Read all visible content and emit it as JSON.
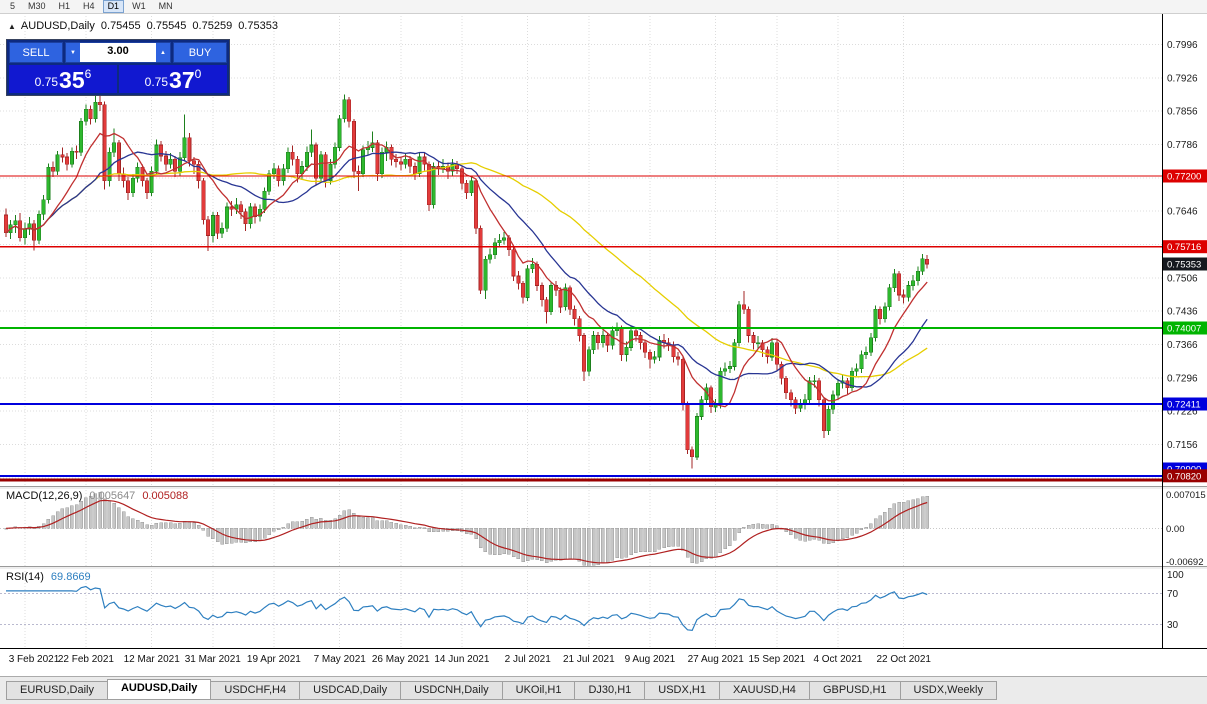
{
  "toolbar": {
    "timeframes": [
      "5",
      "M30",
      "H1",
      "H4",
      "D1",
      "W1",
      "MN"
    ],
    "active": "D1"
  },
  "chart_header": {
    "collapse_icon": "▲",
    "symbol": "AUDUSD,Daily",
    "open": "0.75455",
    "high": "0.75545",
    "low": "0.75259",
    "close": "0.75353"
  },
  "trade_panel": {
    "sell_label": "SELL",
    "buy_label": "BUY",
    "lot_value": "3.00",
    "spinner_down": "▼",
    "spinner_up": "▲",
    "sell_quote": {
      "prefix": "0.75",
      "big": "35",
      "sup": "6"
    },
    "buy_quote": {
      "prefix": "0.75",
      "big": "37",
      "sup": "0"
    }
  },
  "indicator_labels": {
    "macd_name": "MACD(12,26,9)",
    "macd_main": "0.005647",
    "macd_signal": "0.005088",
    "rsi_name": "RSI(14)",
    "rsi_value": "69.8669"
  },
  "price_axis": {
    "ticks": [
      0.7996,
      0.7926,
      0.7856,
      0.7786,
      0.7716,
      0.7646,
      0.7576,
      0.7506,
      0.7436,
      0.7366,
      0.7296,
      0.7226,
      0.7156,
      0.7086
    ],
    "current": {
      "value": 0.75353,
      "label": "0.75353",
      "color": "#15181e"
    }
  },
  "macd_axis": {
    "top": "0.007015",
    "zero": "0.00",
    "bottom": "-0.00692"
  },
  "rsi_axis": {
    "ticks": [
      100,
      70,
      30
    ]
  },
  "date_axis": {
    "ticks": [
      {
        "i": 4,
        "label": "3 Feb 2021"
      },
      {
        "i": 17,
        "label": "22 Feb 2021"
      },
      {
        "i": 31,
        "label": "12 Mar 2021"
      },
      {
        "i": 44,
        "label": "31 Mar 2021"
      },
      {
        "i": 57,
        "label": "19 Apr 2021"
      },
      {
        "i": 71,
        "label": "7 May 2021"
      },
      {
        "i": 84,
        "label": "26 May 2021"
      },
      {
        "i": 97,
        "label": "14 Jun 2021"
      },
      {
        "i": 111,
        "label": "2 Jul 2021"
      },
      {
        "i": 124,
        "label": "21 Jul 2021"
      },
      {
        "i": 137,
        "label": "9 Aug 2021"
      },
      {
        "i": 151,
        "label": "27 Aug 2021"
      },
      {
        "i": 164,
        "label": "15 Sep 2021"
      },
      {
        "i": 177,
        "label": "4 Oct 2021"
      },
      {
        "i": 191,
        "label": "22 Oct 2021"
      }
    ]
  },
  "hlines": [
    {
      "price": 0.772,
      "label": "0.77200",
      "color": "#dd0000",
      "width": 1.4,
      "badge": true
    },
    {
      "price": 0.75716,
      "label": "0.75716",
      "color": "#dd0000",
      "width": 1.4,
      "badge": true
    },
    {
      "price": 0.74007,
      "label": "0.74007",
      "color": "#00b400",
      "width": 1.6,
      "badge": true
    },
    {
      "price": 0.72411,
      "label": "0.72411",
      "color": "#0000dd",
      "width": 1.6,
      "badge": true
    },
    {
      "price": 0.709,
      "label": "0.70900",
      "color": "#0000dd",
      "width": 1.6,
      "badge": true
    },
    {
      "price": 0.7082,
      "label": "0.70820",
      "color": "#990000",
      "width": 3,
      "badge": true
    }
  ],
  "chart_data": {
    "type": "candlestick",
    "symbol": "AUDUSD",
    "timeframe": "Daily",
    "view": {
      "price_min": 0.7069,
      "price_max": 0.8056
    },
    "overlays": [
      {
        "type": "sma",
        "period": 45,
        "color": "#e6ce00"
      },
      {
        "type": "sma",
        "period": 20,
        "color": "#283593"
      },
      {
        "type": "sma",
        "period": 10,
        "color": "#c03030"
      }
    ],
    "macd": {
      "fast": 12,
      "slow": 26,
      "signal": 9,
      "range": [
        -0.00692,
        0.007015
      ]
    },
    "rsi": {
      "period": 14,
      "levels": [
        30,
        70
      ],
      "range": [
        0,
        100
      ]
    },
    "candles": [
      [
        0.7638,
        0.7652,
        0.7592,
        0.7601
      ],
      [
        0.7601,
        0.7628,
        0.7588,
        0.7618
      ],
      [
        0.7618,
        0.7638,
        0.76,
        0.7626
      ],
      [
        0.7626,
        0.7642,
        0.7582,
        0.759
      ],
      [
        0.759,
        0.7622,
        0.7576,
        0.7608
      ],
      [
        0.7608,
        0.7634,
        0.7596,
        0.762
      ],
      [
        0.762,
        0.7628,
        0.7564,
        0.7585
      ],
      [
        0.7585,
        0.7648,
        0.7577,
        0.764
      ],
      [
        0.764,
        0.768,
        0.7628,
        0.767
      ],
      [
        0.767,
        0.7746,
        0.7662,
        0.7738
      ],
      [
        0.7738,
        0.775,
        0.7718,
        0.773
      ],
      [
        0.773,
        0.7773,
        0.7722,
        0.7765
      ],
      [
        0.7765,
        0.778,
        0.7748,
        0.776
      ],
      [
        0.776,
        0.7768,
        0.7732,
        0.7745
      ],
      [
        0.7745,
        0.778,
        0.7738,
        0.7772
      ],
      [
        0.7772,
        0.7784,
        0.7756,
        0.777
      ],
      [
        0.777,
        0.7842,
        0.7762,
        0.7835
      ],
      [
        0.7835,
        0.787,
        0.7826,
        0.786
      ],
      [
        0.786,
        0.7868,
        0.7828,
        0.784
      ],
      [
        0.784,
        0.789,
        0.7832,
        0.7875
      ],
      [
        0.7875,
        0.7891,
        0.7856,
        0.787
      ],
      [
        0.787,
        0.7876,
        0.7692,
        0.771
      ],
      [
        0.771,
        0.778,
        0.7698,
        0.777
      ],
      [
        0.777,
        0.782,
        0.776,
        0.779
      ],
      [
        0.779,
        0.7796,
        0.771,
        0.7725
      ],
      [
        0.7725,
        0.7738,
        0.7696,
        0.771
      ],
      [
        0.771,
        0.7718,
        0.767,
        0.7685
      ],
      [
        0.7685,
        0.7724,
        0.7676,
        0.7715
      ],
      [
        0.7715,
        0.7748,
        0.7706,
        0.7738
      ],
      [
        0.7738,
        0.7744,
        0.7698,
        0.771
      ],
      [
        0.771,
        0.7716,
        0.7672,
        0.7685
      ],
      [
        0.7685,
        0.774,
        0.7678,
        0.773
      ],
      [
        0.773,
        0.7797,
        0.7722,
        0.7785
      ],
      [
        0.7785,
        0.7794,
        0.775,
        0.7762
      ],
      [
        0.7762,
        0.7772,
        0.773,
        0.7745
      ],
      [
        0.7745,
        0.7768,
        0.7736,
        0.7755
      ],
      [
        0.7755,
        0.7762,
        0.7718,
        0.773
      ],
      [
        0.773,
        0.777,
        0.772,
        0.7758
      ],
      [
        0.7758,
        0.7849,
        0.775,
        0.78
      ],
      [
        0.78,
        0.781,
        0.774,
        0.7752
      ],
      [
        0.7752,
        0.776,
        0.7724,
        0.7745
      ],
      [
        0.7745,
        0.7752,
        0.7694,
        0.771
      ],
      [
        0.771,
        0.7716,
        0.7618,
        0.7628
      ],
      [
        0.7628,
        0.7636,
        0.7562,
        0.7595
      ],
      [
        0.7595,
        0.7644,
        0.758,
        0.7637
      ],
      [
        0.7637,
        0.7644,
        0.7588,
        0.76
      ],
      [
        0.76,
        0.7622,
        0.759,
        0.761
      ],
      [
        0.761,
        0.7664,
        0.7602,
        0.7655
      ],
      [
        0.7655,
        0.7668,
        0.7636,
        0.765
      ],
      [
        0.765,
        0.7674,
        0.764,
        0.766
      ],
      [
        0.766,
        0.7668,
        0.763,
        0.7645
      ],
      [
        0.7645,
        0.7652,
        0.7605,
        0.762
      ],
      [
        0.762,
        0.7663,
        0.761,
        0.7655
      ],
      [
        0.7655,
        0.7662,
        0.762,
        0.7635
      ],
      [
        0.7635,
        0.766,
        0.7624,
        0.765
      ],
      [
        0.765,
        0.7696,
        0.7642,
        0.7688
      ],
      [
        0.7688,
        0.7733,
        0.768,
        0.7725
      ],
      [
        0.7725,
        0.7747,
        0.7714,
        0.7735
      ],
      [
        0.7735,
        0.7742,
        0.7698,
        0.771
      ],
      [
        0.771,
        0.7745,
        0.77,
        0.7735
      ],
      [
        0.7735,
        0.778,
        0.7726,
        0.777
      ],
      [
        0.777,
        0.7784,
        0.7742,
        0.7755
      ],
      [
        0.7755,
        0.7762,
        0.7706,
        0.7725
      ],
      [
        0.7725,
        0.7752,
        0.7712,
        0.774
      ],
      [
        0.774,
        0.7782,
        0.773,
        0.777
      ],
      [
        0.777,
        0.7818,
        0.776,
        0.7785
      ],
      [
        0.7785,
        0.779,
        0.77,
        0.7715
      ],
      [
        0.7715,
        0.7772,
        0.7706,
        0.7765
      ],
      [
        0.7765,
        0.777,
        0.7696,
        0.771
      ],
      [
        0.771,
        0.7756,
        0.7702,
        0.7745
      ],
      [
        0.7745,
        0.779,
        0.7736,
        0.778
      ],
      [
        0.778,
        0.7848,
        0.7772,
        0.784
      ],
      [
        0.784,
        0.7891,
        0.7832,
        0.788
      ],
      [
        0.788,
        0.7886,
        0.7822,
        0.7835
      ],
      [
        0.7835,
        0.784,
        0.7716,
        0.773
      ],
      [
        0.773,
        0.7742,
        0.7688,
        0.7725
      ],
      [
        0.7725,
        0.7784,
        0.7718,
        0.7775
      ],
      [
        0.7775,
        0.7794,
        0.7764,
        0.778
      ],
      [
        0.778,
        0.7813,
        0.777,
        0.779
      ],
      [
        0.779,
        0.7796,
        0.771,
        0.7725
      ],
      [
        0.7725,
        0.778,
        0.7716,
        0.777
      ],
      [
        0.777,
        0.7792,
        0.7752,
        0.778
      ],
      [
        0.778,
        0.7786,
        0.7742,
        0.7755
      ],
      [
        0.7755,
        0.7766,
        0.7738,
        0.775
      ],
      [
        0.775,
        0.776,
        0.7732,
        0.7745
      ],
      [
        0.7745,
        0.7768,
        0.7736,
        0.7755
      ],
      [
        0.7755,
        0.7762,
        0.7726,
        0.774
      ],
      [
        0.774,
        0.7748,
        0.7712,
        0.7725
      ],
      [
        0.7725,
        0.777,
        0.7718,
        0.776
      ],
      [
        0.776,
        0.7768,
        0.7732,
        0.7745
      ],
      [
        0.7745,
        0.775,
        0.7646,
        0.766
      ],
      [
        0.766,
        0.7748,
        0.7652,
        0.774
      ],
      [
        0.774,
        0.7752,
        0.7722,
        0.7735
      ],
      [
        0.7735,
        0.7756,
        0.7726,
        0.774
      ],
      [
        0.774,
        0.7748,
        0.7714,
        0.773
      ],
      [
        0.773,
        0.7756,
        0.772,
        0.7745
      ],
      [
        0.7745,
        0.7752,
        0.7724,
        0.7735
      ],
      [
        0.7735,
        0.774,
        0.7692,
        0.7705
      ],
      [
        0.7705,
        0.7712,
        0.7672,
        0.7685
      ],
      [
        0.7685,
        0.772,
        0.7678,
        0.771
      ],
      [
        0.771,
        0.7714,
        0.7598,
        0.761
      ],
      [
        0.761,
        0.7616,
        0.7472,
        0.748
      ],
      [
        0.748,
        0.7552,
        0.7462,
        0.7545
      ],
      [
        0.7545,
        0.7568,
        0.7536,
        0.7555
      ],
      [
        0.7555,
        0.759,
        0.7546,
        0.758
      ],
      [
        0.758,
        0.7598,
        0.757,
        0.7585
      ],
      [
        0.7585,
        0.7602,
        0.7576,
        0.759
      ],
      [
        0.759,
        0.7596,
        0.7552,
        0.7565
      ],
      [
        0.7565,
        0.757,
        0.75,
        0.751
      ],
      [
        0.751,
        0.752,
        0.7482,
        0.7495
      ],
      [
        0.7495,
        0.75,
        0.7452,
        0.7465
      ],
      [
        0.7465,
        0.7533,
        0.7458,
        0.7525
      ],
      [
        0.7525,
        0.7548,
        0.7516,
        0.7535
      ],
      [
        0.7535,
        0.754,
        0.7478,
        0.749
      ],
      [
        0.749,
        0.7496,
        0.7446,
        0.746
      ],
      [
        0.746,
        0.7466,
        0.741,
        0.7435
      ],
      [
        0.7435,
        0.7497,
        0.7428,
        0.749
      ],
      [
        0.749,
        0.75,
        0.7468,
        0.748
      ],
      [
        0.748,
        0.7486,
        0.7432,
        0.7445
      ],
      [
        0.7445,
        0.7494,
        0.7438,
        0.7485
      ],
      [
        0.7485,
        0.749,
        0.7428,
        0.744
      ],
      [
        0.744,
        0.7448,
        0.7406,
        0.742
      ],
      [
        0.742,
        0.7426,
        0.7372,
        0.7385
      ],
      [
        0.7385,
        0.739,
        0.729,
        0.731
      ],
      [
        0.731,
        0.7362,
        0.73,
        0.7355
      ],
      [
        0.7355,
        0.7394,
        0.7346,
        0.7385
      ],
      [
        0.7385,
        0.7392,
        0.7356,
        0.737
      ],
      [
        0.737,
        0.7396,
        0.736,
        0.7385
      ],
      [
        0.7385,
        0.739,
        0.735,
        0.7365
      ],
      [
        0.7365,
        0.7404,
        0.7356,
        0.7395
      ],
      [
        0.7395,
        0.7412,
        0.7384,
        0.74
      ],
      [
        0.74,
        0.7406,
        0.7332,
        0.7345
      ],
      [
        0.7345,
        0.7372,
        0.733,
        0.736
      ],
      [
        0.736,
        0.7404,
        0.7352,
        0.7395
      ],
      [
        0.7395,
        0.7402,
        0.7372,
        0.7385
      ],
      [
        0.7385,
        0.7392,
        0.7356,
        0.737
      ],
      [
        0.737,
        0.7376,
        0.7338,
        0.735
      ],
      [
        0.735,
        0.7356,
        0.7316,
        0.7335
      ],
      [
        0.7335,
        0.7352,
        0.7326,
        0.734
      ],
      [
        0.734,
        0.7384,
        0.7332,
        0.7375
      ],
      [
        0.7375,
        0.7388,
        0.7358,
        0.737
      ],
      [
        0.737,
        0.738,
        0.7352,
        0.7365
      ],
      [
        0.7365,
        0.7372,
        0.7328,
        0.734
      ],
      [
        0.734,
        0.735,
        0.7322,
        0.7335
      ],
      [
        0.7335,
        0.734,
        0.7228,
        0.724
      ],
      [
        0.724,
        0.7246,
        0.7136,
        0.7145
      ],
      [
        0.7145,
        0.7152,
        0.7106,
        0.713
      ],
      [
        0.713,
        0.7222,
        0.7124,
        0.7215
      ],
      [
        0.7215,
        0.7258,
        0.7208,
        0.725
      ],
      [
        0.725,
        0.7284,
        0.724,
        0.7275
      ],
      [
        0.7275,
        0.728,
        0.7222,
        0.7235
      ],
      [
        0.7235,
        0.7252,
        0.7224,
        0.724
      ],
      [
        0.724,
        0.7318,
        0.7232,
        0.731
      ],
      [
        0.731,
        0.7328,
        0.73,
        0.7315
      ],
      [
        0.7315,
        0.7332,
        0.7306,
        0.732
      ],
      [
        0.732,
        0.7378,
        0.7312,
        0.737
      ],
      [
        0.737,
        0.7458,
        0.7362,
        0.745
      ],
      [
        0.745,
        0.7478,
        0.743,
        0.744
      ],
      [
        0.744,
        0.7446,
        0.737,
        0.7385
      ],
      [
        0.7385,
        0.7392,
        0.7356,
        0.737
      ],
      [
        0.737,
        0.7384,
        0.7358,
        0.737
      ],
      [
        0.737,
        0.7376,
        0.734,
        0.7355
      ],
      [
        0.7355,
        0.7362,
        0.7326,
        0.734
      ],
      [
        0.734,
        0.738,
        0.7332,
        0.737
      ],
      [
        0.737,
        0.7376,
        0.7312,
        0.7325
      ],
      [
        0.7325,
        0.733,
        0.7282,
        0.7295
      ],
      [
        0.7295,
        0.73,
        0.7252,
        0.7265
      ],
      [
        0.7265,
        0.7272,
        0.7236,
        0.725
      ],
      [
        0.725,
        0.7256,
        0.722,
        0.7232
      ],
      [
        0.7232,
        0.7252,
        0.7224,
        0.724
      ],
      [
        0.724,
        0.7262,
        0.723,
        0.725
      ],
      [
        0.725,
        0.7298,
        0.7242,
        0.729
      ],
      [
        0.729,
        0.7302,
        0.7276,
        0.729
      ],
      [
        0.729,
        0.7296,
        0.7236,
        0.725
      ],
      [
        0.725,
        0.7254,
        0.717,
        0.7185
      ],
      [
        0.7185,
        0.7238,
        0.7176,
        0.723
      ],
      [
        0.723,
        0.727,
        0.722,
        0.726
      ],
      [
        0.726,
        0.7294,
        0.725,
        0.7285
      ],
      [
        0.7285,
        0.7302,
        0.7274,
        0.729
      ],
      [
        0.729,
        0.7296,
        0.7262,
        0.7275
      ],
      [
        0.7275,
        0.7318,
        0.7268,
        0.731
      ],
      [
        0.731,
        0.7326,
        0.73,
        0.7315
      ],
      [
        0.7315,
        0.7354,
        0.7306,
        0.7345
      ],
      [
        0.7345,
        0.7362,
        0.7336,
        0.735
      ],
      [
        0.735,
        0.739,
        0.7342,
        0.738
      ],
      [
        0.738,
        0.7448,
        0.7372,
        0.744
      ],
      [
        0.744,
        0.7446,
        0.7408,
        0.742
      ],
      [
        0.742,
        0.7454,
        0.7412,
        0.7445
      ],
      [
        0.7445,
        0.7493,
        0.7438,
        0.7485
      ],
      [
        0.7485,
        0.7525,
        0.7476,
        0.7515
      ],
      [
        0.7515,
        0.752,
        0.7458,
        0.747
      ],
      [
        0.747,
        0.7482,
        0.7452,
        0.7465
      ],
      [
        0.7465,
        0.75,
        0.7456,
        0.749
      ],
      [
        0.749,
        0.7512,
        0.748,
        0.75
      ],
      [
        0.75,
        0.753,
        0.749,
        0.752
      ],
      [
        0.752,
        0.7556,
        0.7512,
        0.7546
      ],
      [
        0.75455,
        0.75545,
        0.75259,
        0.75353
      ]
    ]
  },
  "tabs": {
    "items": [
      "EURUSD,Daily",
      "AUDUSD,Daily",
      "USDCHF,H4",
      "USDCAD,Daily",
      "USDCNH,Daily",
      "UKOil,H1",
      "DJ30,H1",
      "USDX,H1",
      "XAUUSD,H4",
      "GBPUSD,H1",
      "USDX,Weekly"
    ],
    "active": "AUDUSD,Daily"
  },
  "colors": {
    "up": "#2eb82e",
    "up_border": "#1d801d",
    "down": "#e23b3b",
    "down_border": "#a32424",
    "macd_hist": "#c6c6c6",
    "macd_hist_border": "#9a9a9a",
    "macd_signal": "#b02020",
    "rsi_line": "#2d7fc0",
    "grid": "#dcdcdc",
    "axis_text": "#1a1a1a"
  }
}
